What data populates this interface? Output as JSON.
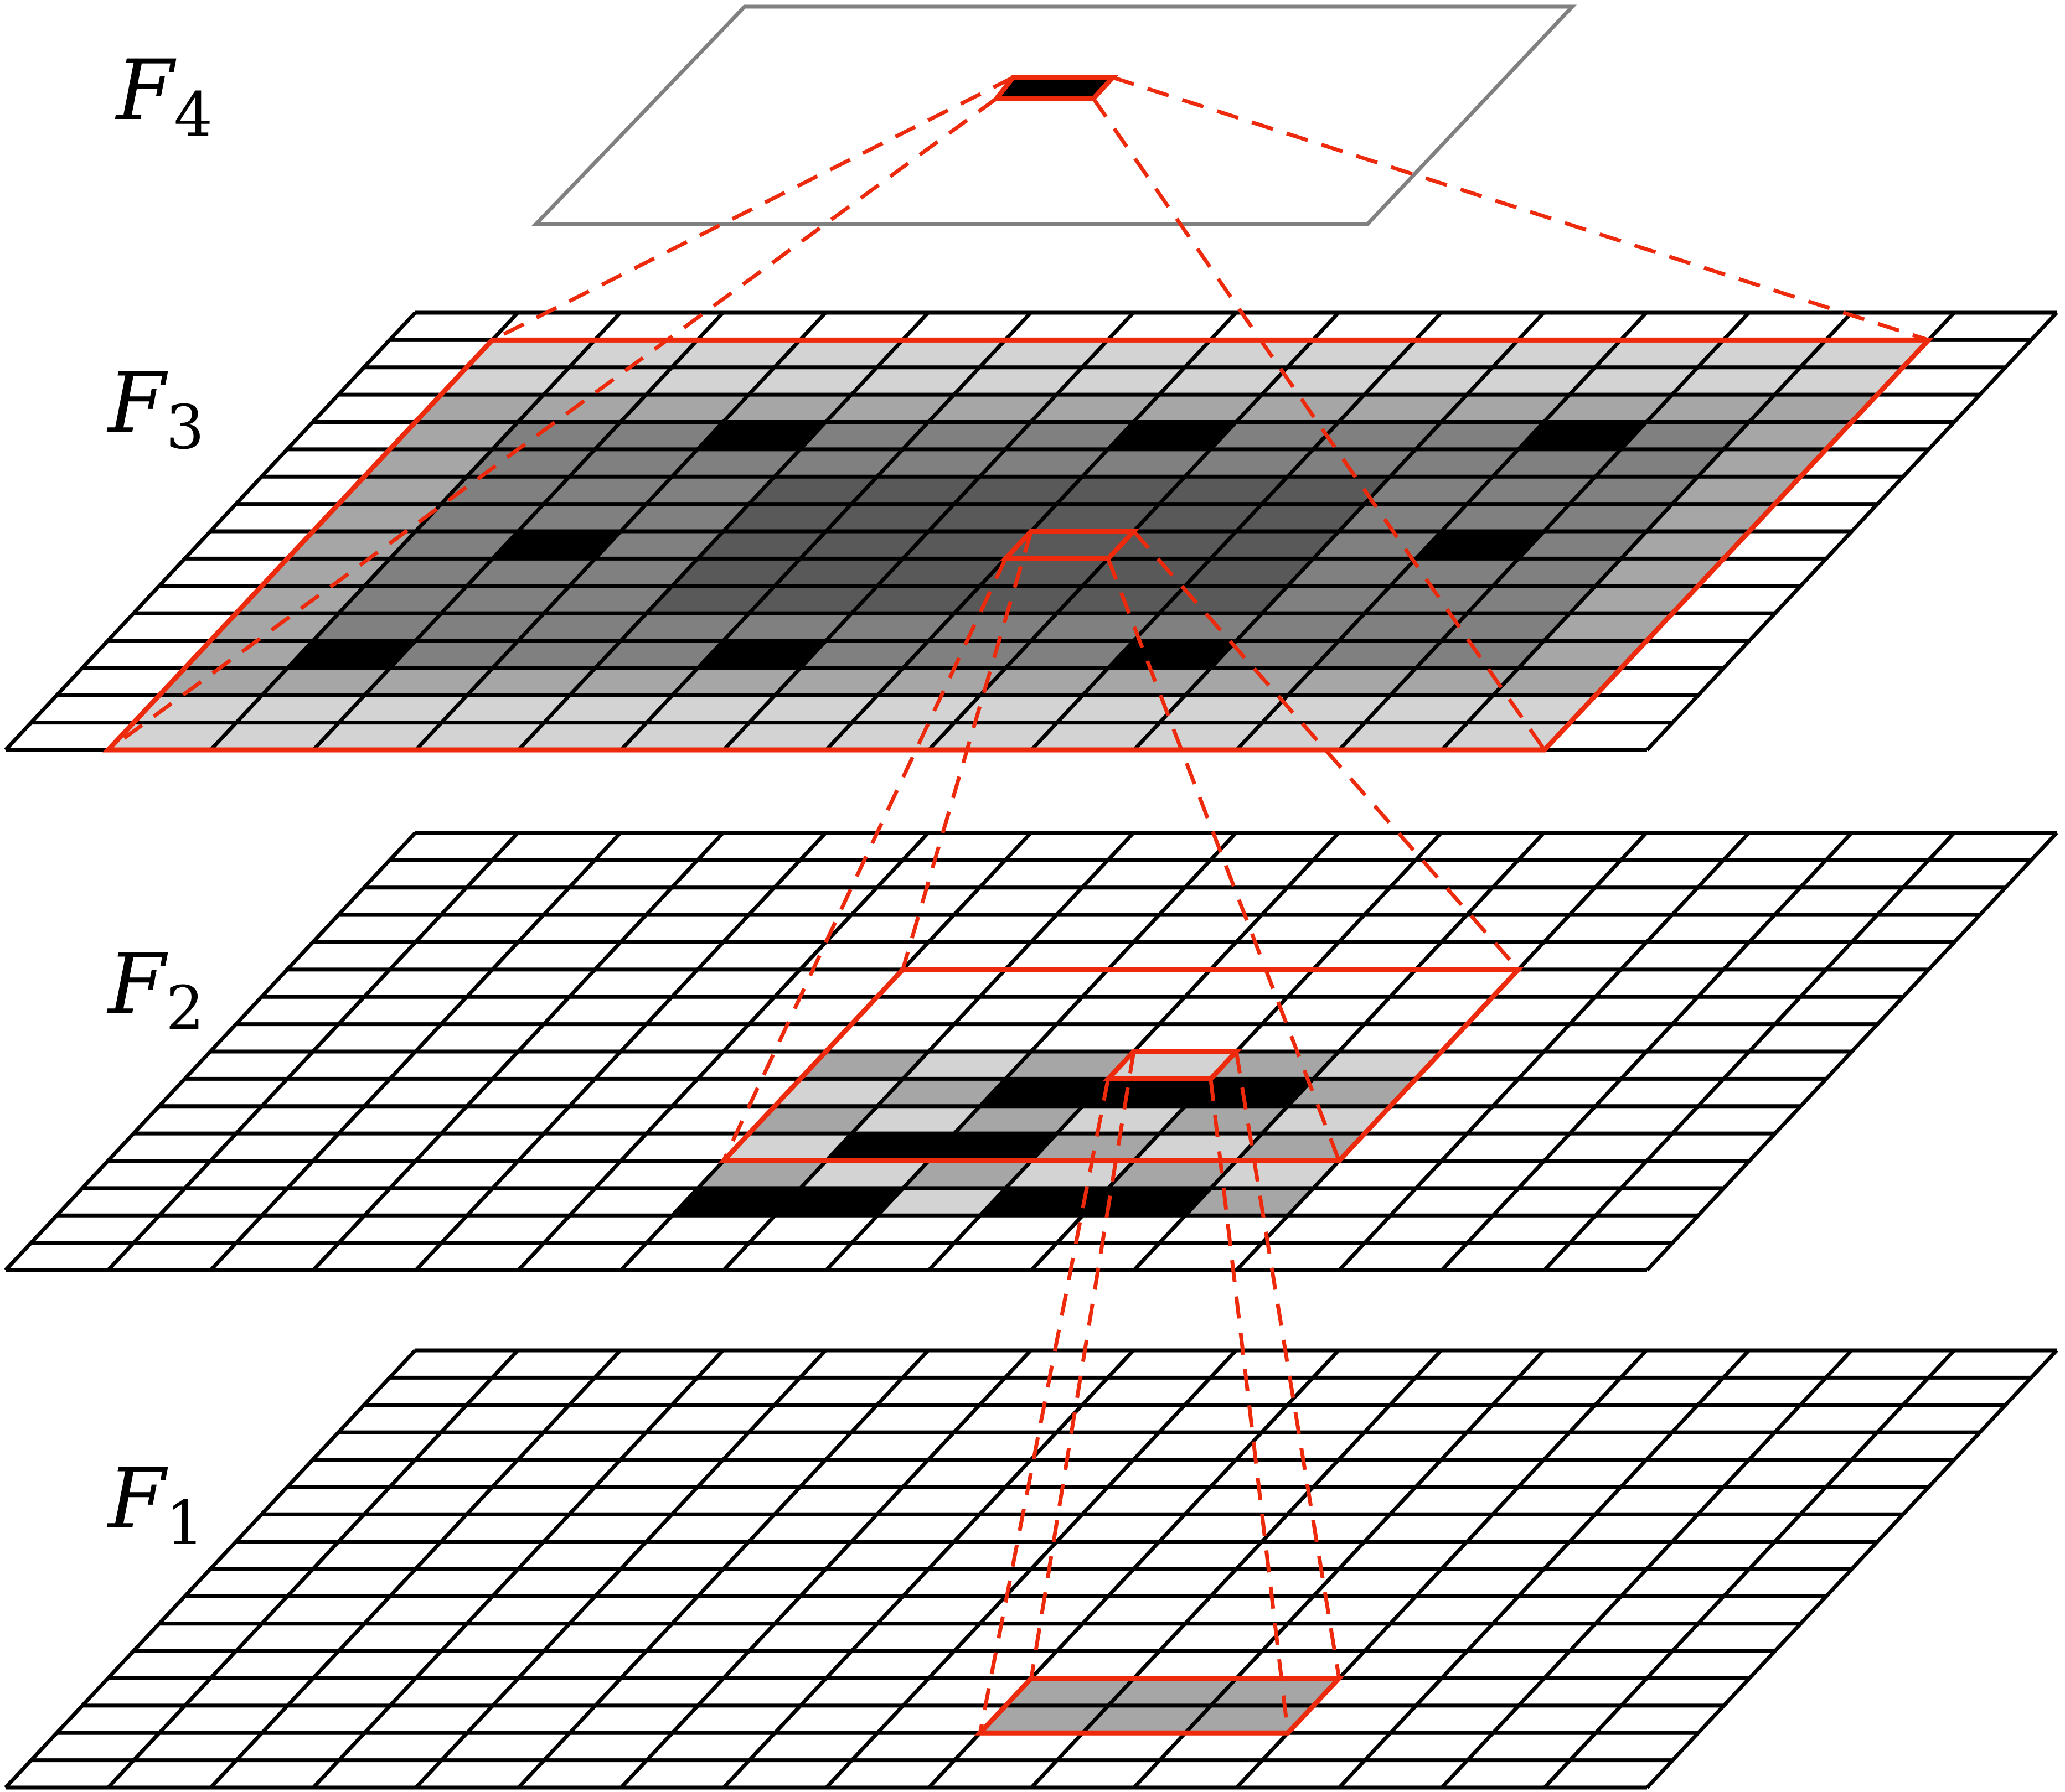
{
  "diagram": {
    "layers": [
      {
        "label": "F",
        "subscript": "4",
        "kind": "plain",
        "frame_color": "#808080"
      },
      {
        "label": "F",
        "subscript": "3",
        "kind": "grid",
        "shade_cells": true,
        "receptive_field_shades": [
          "#d3d3d3",
          "#a6a6a6",
          "#808080",
          "#595959",
          "#000000"
        ]
      },
      {
        "label": "F",
        "subscript": "2",
        "kind": "grid",
        "shade_cells": true,
        "receptive_field_shades": [
          "#d3d3d3",
          "#a6a6a6",
          "#000000"
        ]
      },
      {
        "label": "F",
        "subscript": "1",
        "kind": "grid",
        "shade_cells": true,
        "receptive_field_shades": [
          "#a6a6a6"
        ]
      }
    ],
    "colors": {
      "grid_line": "#000000",
      "highlight": "#ee2a0c",
      "projection": "#ee2a0c",
      "unit_fill": "#000000",
      "frame": "#808080"
    },
    "projection_style": "dashed"
  }
}
